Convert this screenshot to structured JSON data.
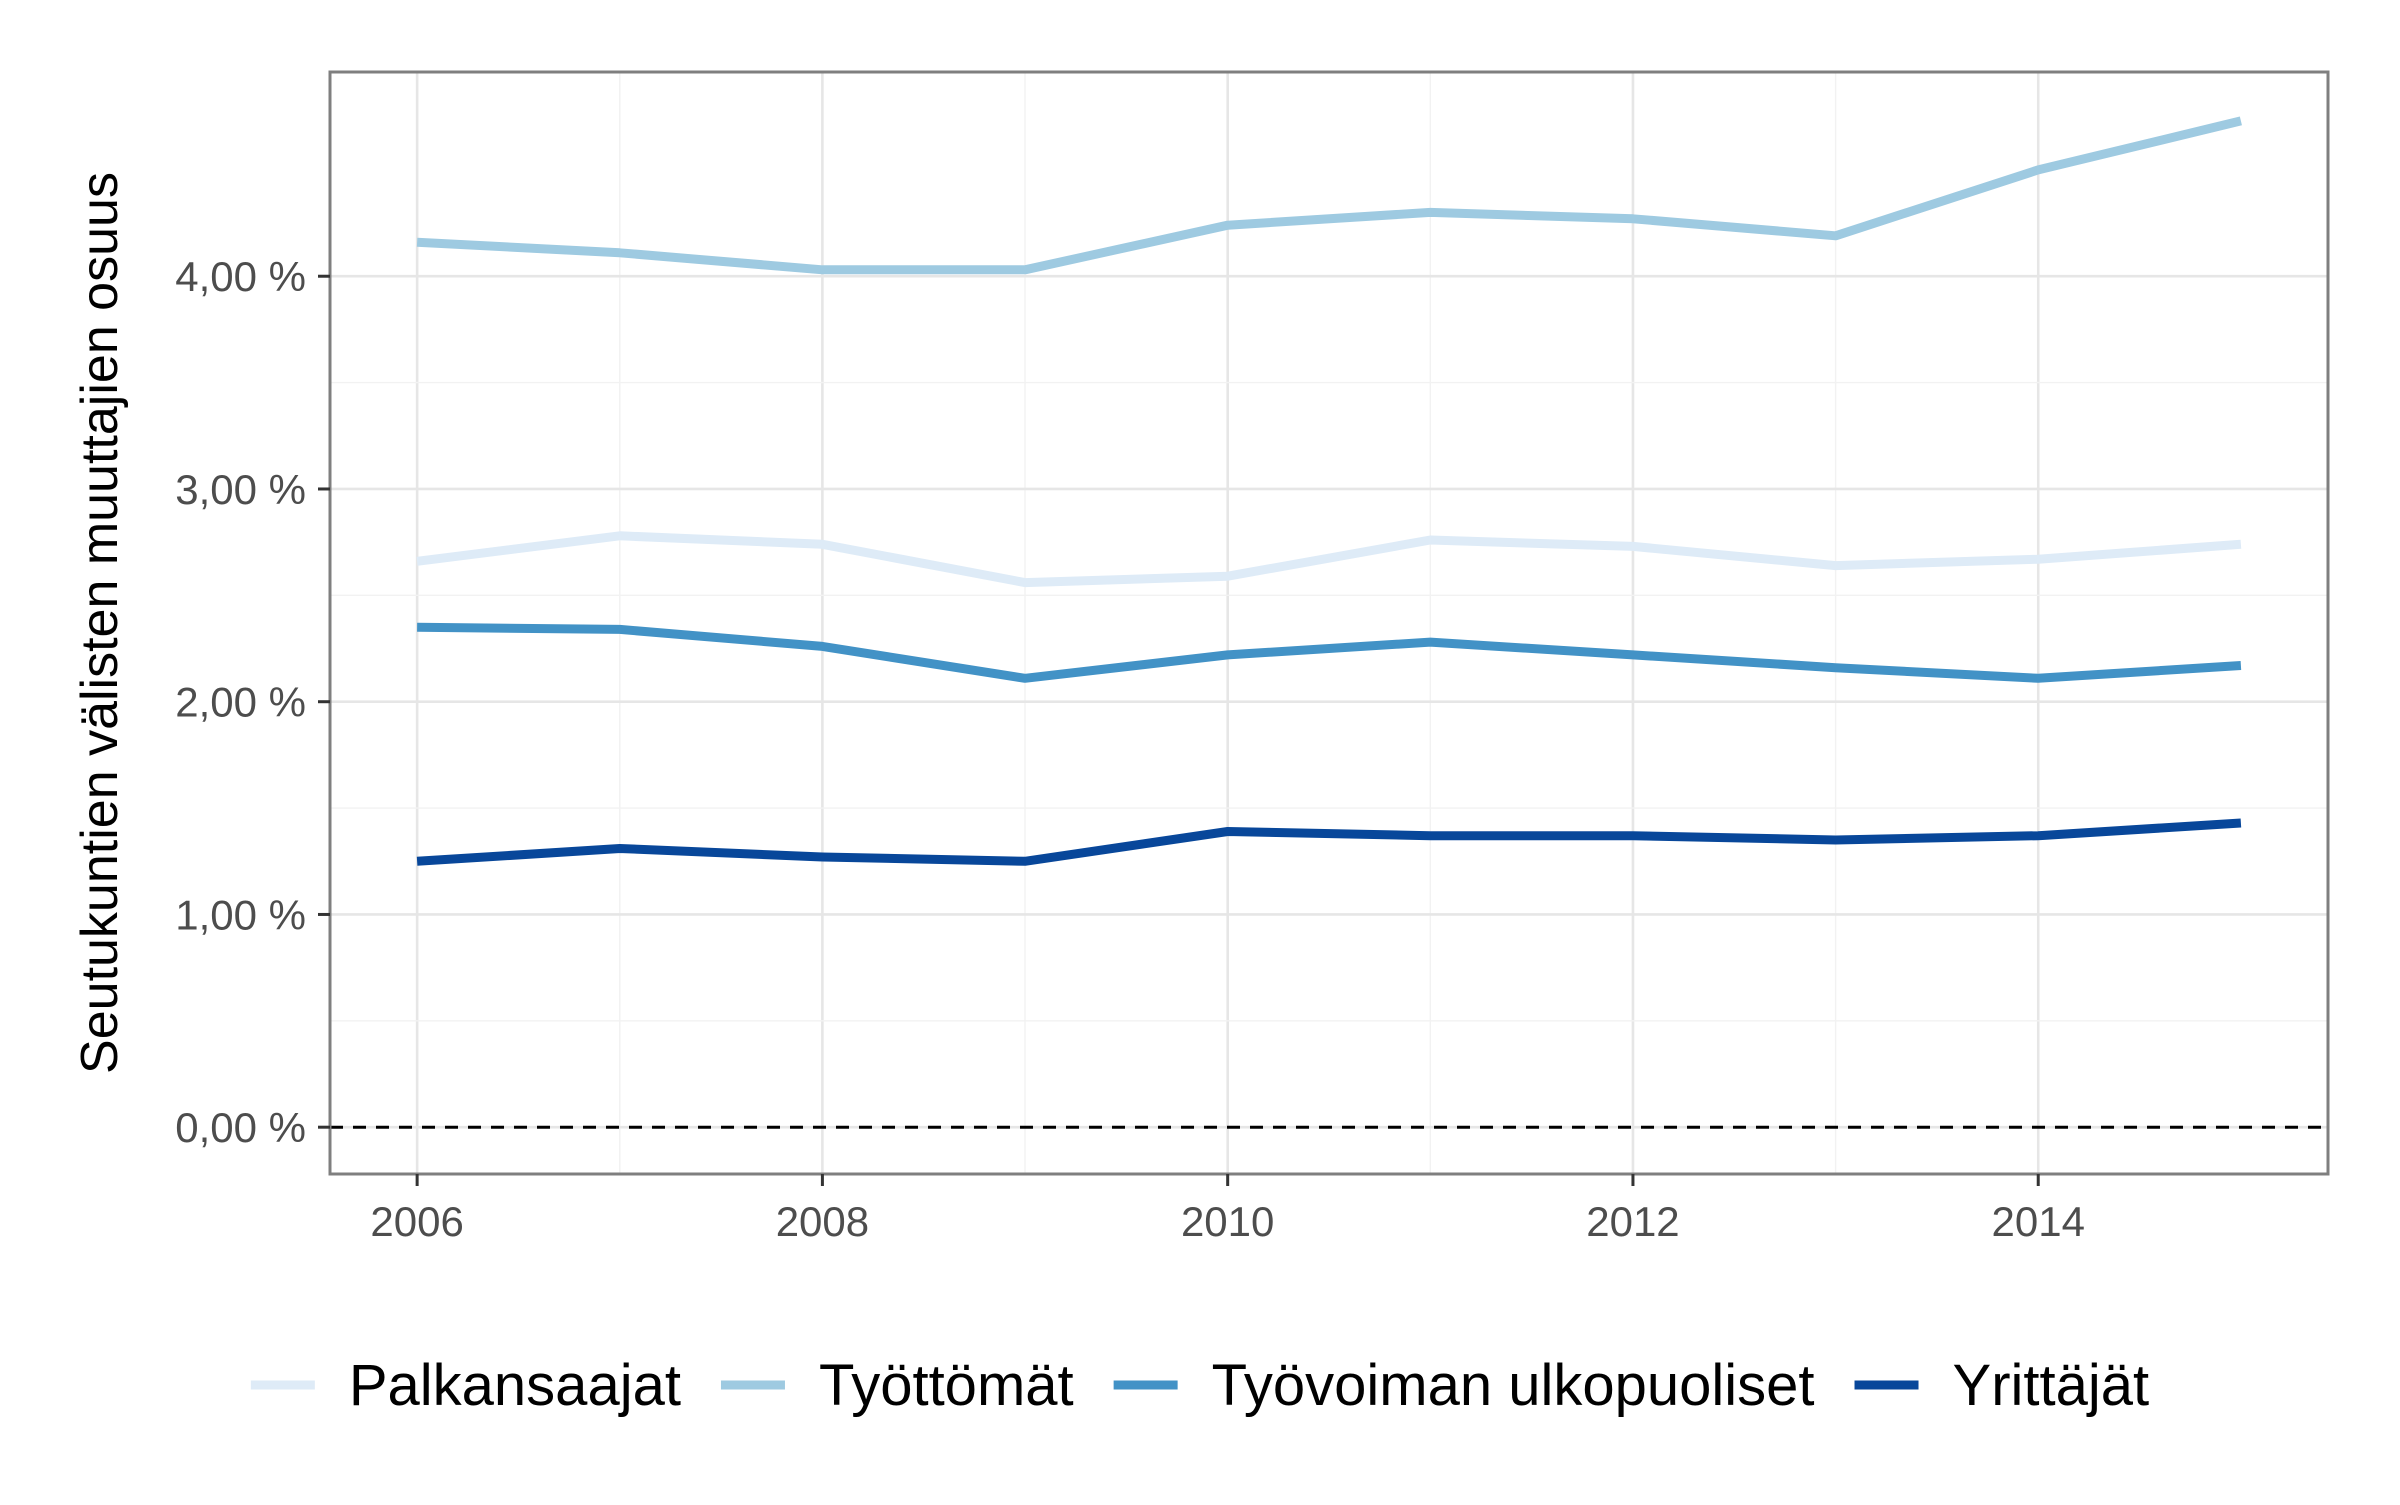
{
  "chart_data": {
    "type": "line",
    "title": "",
    "xlabel": "",
    "ylabel": "Seutukuntien välisten muuttajien osuus",
    "x": [
      2006,
      2007,
      2008,
      2009,
      2010,
      2011,
      2012,
      2013,
      2014,
      2015
    ],
    "x_ticks": [
      2006,
      2008,
      2010,
      2012,
      2014
    ],
    "x_tick_labels": [
      "2006",
      "2008",
      "2010",
      "2012",
      "2014"
    ],
    "xlim": [
      2005.57,
      2015.43
    ],
    "y_ticks": [
      0,
      1,
      2,
      3,
      4
    ],
    "y_tick_labels": [
      "0,00 %",
      "1,00 %",
      "2,00 %",
      "3,00 %",
      "4,00 %"
    ],
    "ylim": [
      -0.22,
      4.96
    ],
    "ylabel_unit": "%",
    "reference_line": {
      "y": 0,
      "style": "dashed",
      "color": "#000000"
    },
    "grid": true,
    "legend_position": "bottom",
    "series": [
      {
        "name": "Palkansaajat",
        "color": "#deebf7",
        "values": [
          2.66,
          2.78,
          2.74,
          2.56,
          2.59,
          2.76,
          2.73,
          2.64,
          2.67,
          2.74
        ]
      },
      {
        "name": "Työttömät",
        "color": "#9ecae1",
        "values": [
          4.16,
          4.11,
          4.03,
          4.03,
          4.24,
          4.3,
          4.27,
          4.19,
          4.5,
          4.73
        ]
      },
      {
        "name": "Työvoiman ulkopuoliset",
        "color": "#4292c6",
        "values": [
          2.35,
          2.34,
          2.26,
          2.11,
          2.22,
          2.28,
          2.22,
          2.16,
          2.11,
          2.17
        ]
      },
      {
        "name": "Yrittäjät",
        "color": "#08479a",
        "values": [
          1.25,
          1.31,
          1.27,
          1.25,
          1.39,
          1.37,
          1.37,
          1.35,
          1.37,
          1.43
        ]
      }
    ]
  }
}
